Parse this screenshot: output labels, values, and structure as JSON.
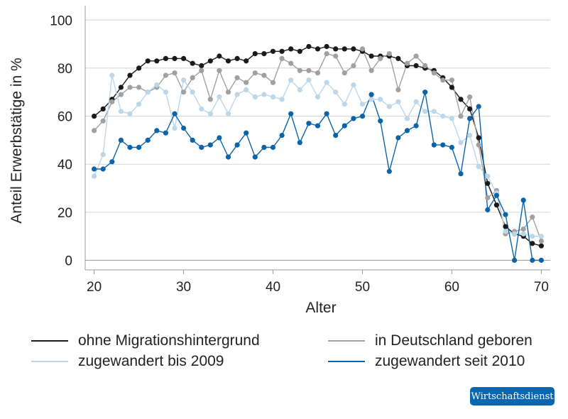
{
  "chart_data": {
    "type": "line",
    "xlabel": "Alter",
    "ylabel": "Anteil Erwerbstätige in %",
    "xlim": [
      19,
      71
    ],
    "ylim": [
      -4,
      106
    ],
    "xticks": [
      20,
      30,
      40,
      50,
      60,
      70
    ],
    "yticks": [
      0,
      20,
      40,
      60,
      80,
      100
    ],
    "grid": "horizontal",
    "legend_position": "bottom",
    "x": [
      20,
      21,
      22,
      23,
      24,
      25,
      26,
      27,
      28,
      29,
      30,
      31,
      32,
      33,
      34,
      35,
      36,
      37,
      38,
      39,
      40,
      41,
      42,
      43,
      44,
      45,
      46,
      47,
      48,
      49,
      50,
      51,
      52,
      53,
      54,
      55,
      56,
      57,
      58,
      59,
      60,
      61,
      62,
      63,
      64,
      65,
      66,
      67,
      68,
      69,
      70
    ],
    "series": [
      {
        "name": "ohne Migrationshintergrund",
        "color": "#1a1a1a",
        "values": [
          60,
          63,
          67,
          72,
          77,
          80,
          83,
          83,
          84,
          84,
          84,
          82,
          81,
          83,
          85,
          83,
          84,
          83,
          86,
          86,
          87,
          87,
          88,
          87,
          89,
          88,
          89,
          88,
          88,
          88,
          87,
          85,
          85,
          85,
          84,
          81,
          81,
          80,
          79,
          76,
          72,
          67,
          63,
          51,
          32,
          23,
          14,
          11,
          10,
          7,
          6
        ]
      },
      {
        "name": "in Deutschland geboren",
        "color": "#a0a0a0",
        "values": [
          54,
          58,
          66,
          69,
          72,
          72,
          70,
          72,
          77,
          78,
          70,
          76,
          79,
          67,
          79,
          70,
          76,
          74,
          78,
          77,
          74,
          84,
          82,
          79,
          79,
          78,
          86,
          85,
          78,
          81,
          88,
          79,
          84,
          86,
          71,
          82,
          85,
          81,
          78,
          75,
          75,
          60,
          68,
          48,
          26,
          29,
          11,
          12,
          13,
          18,
          8
        ]
      },
      {
        "name": "zugewandert bis 2009",
        "color": "#bcd6ea",
        "values": [
          35,
          44,
          77,
          62,
          61,
          65,
          70,
          73,
          70,
          55,
          75,
          70,
          63,
          61,
          68,
          61,
          69,
          71,
          68,
          69,
          68,
          67,
          75,
          71,
          75,
          68,
          74,
          70,
          65,
          73,
          65,
          67,
          67,
          64,
          66,
          59,
          66,
          62,
          62,
          60,
          59,
          49,
          52,
          39,
          35,
          28,
          12,
          11,
          11,
          10,
          10
        ]
      },
      {
        "name": "zugewandert seit 2010",
        "color": "#0b63a8",
        "values": [
          38,
          38,
          41,
          50,
          47,
          47,
          50,
          54,
          53,
          61,
          55,
          50,
          47,
          48,
          51,
          43,
          48,
          53,
          43,
          47,
          47,
          52,
          61,
          49,
          57,
          56,
          61,
          52,
          56,
          59,
          60,
          69,
          58,
          37,
          51,
          54,
          56,
          70,
          48,
          48,
          47,
          36,
          59,
          64,
          21,
          27,
          19,
          0,
          25,
          0,
          0
        ]
      }
    ]
  },
  "legend": {
    "items": [
      {
        "label": "ohne Migrationshintergrund",
        "color": "#1a1a1a"
      },
      {
        "label": "in Deutschland geboren",
        "color": "#a0a0a0"
      },
      {
        "label": "zugewandert bis 2009",
        "color": "#bcd6ea"
      },
      {
        "label": "zugewandert seit 2010",
        "color": "#0b63a8"
      }
    ]
  },
  "brand": {
    "label": "Wirtschaftsdienst"
  }
}
